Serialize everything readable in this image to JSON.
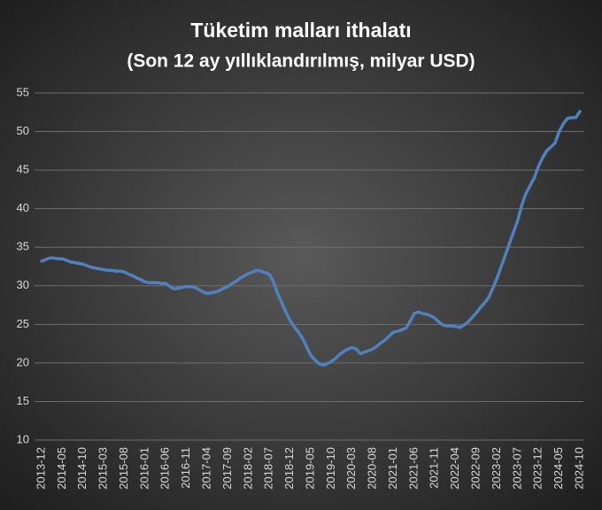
{
  "chart_data": {
    "type": "line",
    "title": "Tüketim malları ithalatı",
    "subtitle": "(Son 12 ay yıllıklandırılmış, milyar USD)",
    "categories": [
      "2013-12",
      null,
      null,
      null,
      null,
      "2014-05",
      null,
      null,
      null,
      null,
      "2014-10",
      null,
      null,
      null,
      null,
      "2015-03",
      null,
      null,
      null,
      null,
      "2015-08",
      null,
      null,
      null,
      null,
      "2016-01",
      null,
      null,
      null,
      null,
      "2016-06",
      null,
      null,
      null,
      null,
      "2016-11",
      null,
      null,
      null,
      null,
      "2017-04",
      null,
      null,
      null,
      null,
      "2017-09",
      null,
      null,
      null,
      null,
      "2018-02",
      null,
      null,
      null,
      null,
      "2018-07",
      null,
      null,
      null,
      null,
      "2018-12",
      null,
      null,
      null,
      null,
      "2019-05",
      null,
      null,
      null,
      null,
      "2019-10",
      null,
      null,
      null,
      null,
      "2020-03",
      null,
      null,
      null,
      null,
      "2020-08",
      null,
      null,
      null,
      null,
      "2021-01",
      null,
      null,
      null,
      null,
      "2021-06",
      null,
      null,
      null,
      null,
      "2021-11",
      null,
      null,
      null,
      null,
      "2022-04",
      null,
      null,
      null,
      null,
      "2022-09",
      null,
      null,
      null,
      null,
      "2023-02",
      null,
      null,
      null,
      null,
      "2023-07",
      null,
      null,
      null,
      null,
      "2023-12",
      null,
      null,
      null,
      null,
      "2024-05",
      null,
      null,
      null,
      null,
      "2024-10"
    ],
    "values": [
      33.2,
      33.4,
      33.6,
      33.6,
      33.5,
      33.5,
      33.3,
      33.1,
      33.0,
      32.9,
      32.8,
      32.6,
      32.4,
      32.3,
      32.2,
      32.1,
      32.0,
      32.0,
      31.9,
      31.9,
      31.8,
      31.5,
      31.3,
      31.0,
      30.8,
      30.5,
      30.4,
      30.4,
      30.4,
      30.3,
      30.3,
      29.9,
      29.6,
      29.7,
      29.8,
      29.9,
      29.9,
      29.8,
      29.5,
      29.2,
      29.0,
      29.1,
      29.2,
      29.4,
      29.7,
      29.9,
      30.3,
      30.6,
      31.0,
      31.3,
      31.6,
      31.8,
      32.0,
      31.9,
      31.7,
      31.5,
      30.5,
      29.0,
      27.8,
      26.6,
      25.5,
      24.7,
      24.0,
      23.2,
      22.1,
      21.0,
      20.4,
      19.9,
      19.7,
      19.9,
      20.2,
      20.6,
      21.1,
      21.5,
      21.8,
      22.0,
      21.8,
      21.2,
      21.4,
      21.6,
      21.8,
      22.2,
      22.6,
      23.0,
      23.5,
      24.0,
      24.1,
      24.3,
      24.5,
      25.4,
      26.4,
      26.6,
      26.4,
      26.3,
      26.1,
      25.8,
      25.3,
      24.9,
      24.8,
      24.8,
      24.7,
      24.6,
      24.9,
      25.3,
      25.9,
      26.5,
      27.2,
      27.8,
      28.5,
      29.7,
      31.0,
      32.5,
      34.0,
      35.5,
      37.0,
      38.5,
      40.5,
      42.0,
      43.0,
      44.0,
      45.5,
      46.6,
      47.5,
      48.0,
      48.5,
      50.0,
      51.0,
      51.7,
      51.8,
      51.8,
      52.6
    ],
    "color": "#4f81bd",
    "ylim": [
      10,
      55
    ],
    "yticks": [
      10,
      15,
      20,
      25,
      30,
      35,
      40,
      45,
      50,
      55
    ],
    "grid": true
  }
}
